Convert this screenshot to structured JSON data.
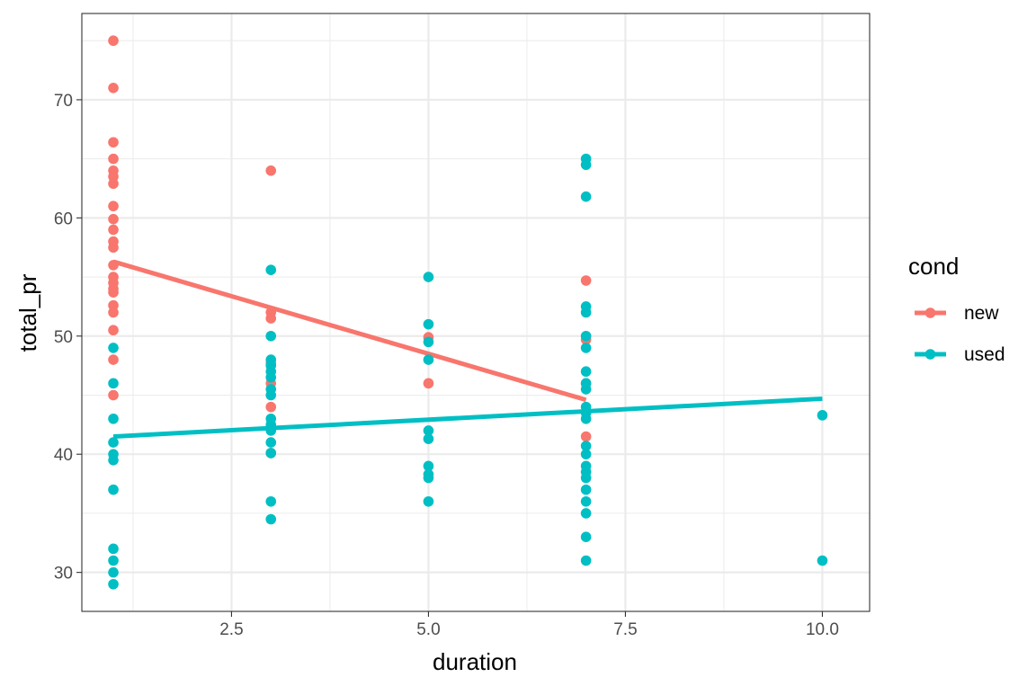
{
  "chart_data": {
    "type": "scatter",
    "xlabel": "duration",
    "ylabel": "total_pr",
    "xlim": [
      0.6,
      10.6
    ],
    "ylim": [
      26.7,
      77.3
    ],
    "x_ticks": [
      2.5,
      5.0,
      7.5,
      10.0
    ],
    "x_tick_labels": [
      "2.5",
      "5.0",
      "7.5",
      "10.0"
    ],
    "y_ticks": [
      30,
      40,
      50,
      60,
      70
    ],
    "y_tick_labels": [
      "30",
      "40",
      "50",
      "60",
      "70"
    ],
    "grid": true,
    "legend": {
      "title": "cond",
      "position": "right"
    },
    "series": [
      {
        "name": "new",
        "color": "#F8766D",
        "points": [
          [
            1,
            75
          ],
          [
            1,
            71
          ],
          [
            1,
            66.4
          ],
          [
            1,
            65
          ],
          [
            1,
            64
          ],
          [
            1,
            63.5
          ],
          [
            1,
            62.9
          ],
          [
            1,
            61
          ],
          [
            1,
            59.9
          ],
          [
            1,
            59
          ],
          [
            1,
            58
          ],
          [
            1,
            57.5
          ],
          [
            1,
            56
          ],
          [
            1,
            55
          ],
          [
            1,
            54.5
          ],
          [
            1,
            54
          ],
          [
            1,
            53.7
          ],
          [
            1,
            52.6
          ],
          [
            1,
            52
          ],
          [
            1,
            50.5
          ],
          [
            1,
            48
          ],
          [
            1,
            45
          ],
          [
            3,
            64
          ],
          [
            3,
            52
          ],
          [
            3,
            51.5
          ],
          [
            3,
            47.7
          ],
          [
            3,
            46
          ],
          [
            3,
            44
          ],
          [
            3,
            40.1
          ],
          [
            5,
            49.9
          ],
          [
            5,
            46
          ],
          [
            7,
            54.7
          ],
          [
            7,
            49.7
          ],
          [
            7,
            46
          ],
          [
            7,
            41.5
          ]
        ],
        "trend": {
          "x": [
            1,
            7
          ],
          "y": [
            56.3,
            44.6
          ]
        }
      },
      {
        "name": "used",
        "color": "#00BFC4",
        "points": [
          [
            1,
            49
          ],
          [
            1,
            46
          ],
          [
            1,
            43
          ],
          [
            1,
            41
          ],
          [
            1,
            40
          ],
          [
            1,
            39.5
          ],
          [
            1,
            37
          ],
          [
            1,
            32
          ],
          [
            1,
            31
          ],
          [
            1,
            30
          ],
          [
            1,
            29
          ],
          [
            3,
            55.6
          ],
          [
            3,
            50
          ],
          [
            3,
            48
          ],
          [
            3,
            47.5
          ],
          [
            3,
            47
          ],
          [
            3,
            46.5
          ],
          [
            3,
            45.5
          ],
          [
            3,
            45
          ],
          [
            3,
            43
          ],
          [
            3,
            42.5
          ],
          [
            3,
            42
          ],
          [
            3,
            41
          ],
          [
            3,
            40.1
          ],
          [
            3,
            36
          ],
          [
            3,
            34.5
          ],
          [
            5,
            55
          ],
          [
            5,
            51
          ],
          [
            5,
            49.5
          ],
          [
            5,
            48
          ],
          [
            5,
            42
          ],
          [
            5,
            41.3
          ],
          [
            5,
            39
          ],
          [
            5,
            38.3
          ],
          [
            5,
            38
          ],
          [
            5,
            36
          ],
          [
            7,
            65
          ],
          [
            7,
            64.5
          ],
          [
            7,
            61.8
          ],
          [
            7,
            52.5
          ],
          [
            7,
            52
          ],
          [
            7,
            50
          ],
          [
            7,
            49
          ],
          [
            7,
            47
          ],
          [
            7,
            46
          ],
          [
            7,
            45.5
          ],
          [
            7,
            44
          ],
          [
            7,
            43.5
          ],
          [
            7,
            43
          ],
          [
            7,
            40.7
          ],
          [
            7,
            40
          ],
          [
            7,
            39
          ],
          [
            7,
            38.5
          ],
          [
            7,
            38
          ],
          [
            7,
            37
          ],
          [
            7,
            36
          ],
          [
            7,
            35
          ],
          [
            7,
            33
          ],
          [
            7,
            31
          ],
          [
            10,
            43.3
          ],
          [
            10,
            31
          ]
        ],
        "trend": {
          "x": [
            1,
            10
          ],
          "y": [
            41.5,
            44.7
          ]
        }
      }
    ]
  }
}
